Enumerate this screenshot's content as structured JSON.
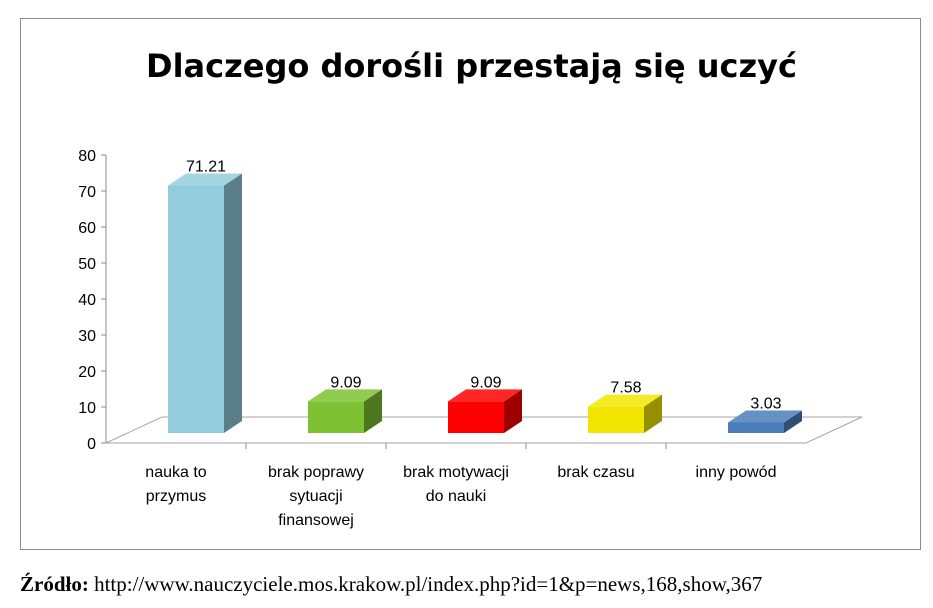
{
  "source": {
    "label": "Źródło:",
    "url": "http://www.nauczyciele.mos.krakow.pl/index.php?id=1&p=news,168,show,367"
  },
  "chart_data": {
    "type": "bar",
    "title": "Dlaczego dorośli przestają się uczyć",
    "categories": [
      [
        "nauka to",
        "przymus"
      ],
      [
        "brak poprawy",
        "sytuacji",
        "finansowej"
      ],
      [
        "brak motywacji",
        "do nauki"
      ],
      [
        "brak czasu"
      ],
      [
        "inny powód"
      ]
    ],
    "values": [
      71.21,
      9.09,
      9.09,
      7.58,
      3.03
    ],
    "data_labels": [
      "71.21",
      "9.09",
      "9.09",
      "7.58",
      "3.03"
    ],
    "colors": [
      "#93cddd",
      "#7ec234",
      "#ff0000",
      "#f2e600",
      "#4a7ebb"
    ],
    "ylim": [
      0,
      80
    ],
    "yticks": [
      0,
      10,
      20,
      30,
      40,
      50,
      60,
      70,
      80
    ],
    "grid": false,
    "legend": "none",
    "style": "3d"
  }
}
